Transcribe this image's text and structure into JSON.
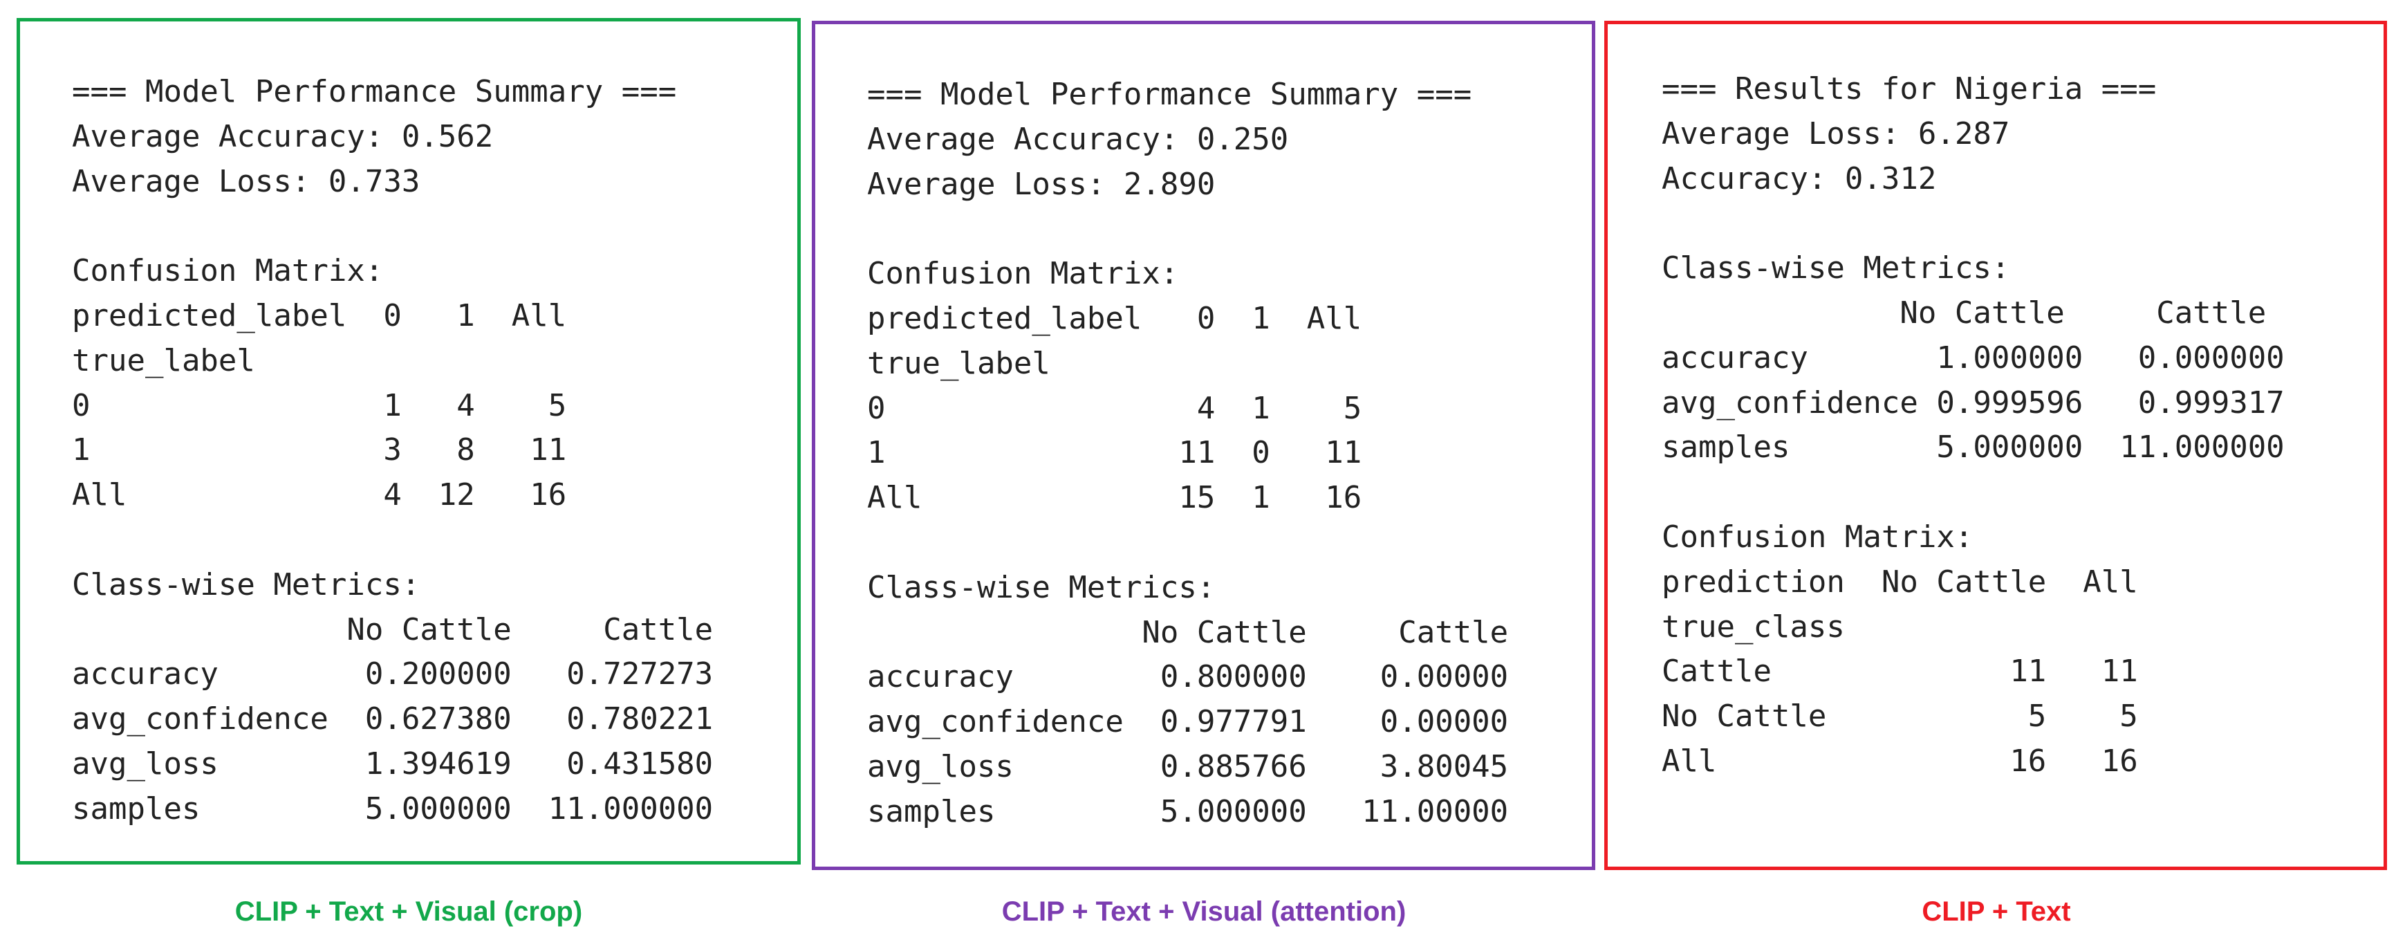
{
  "panels": [
    {
      "border_color": "#12a84a",
      "lines": [
        "=== Model Performance Summary ===",
        "Average Accuracy: 0.562",
        "Average Loss: 0.733",
        "",
        "Confusion Matrix:",
        "predicted_label  0   1  All",
        "true_label",
        "0                1   4    5",
        "1                3   8   11",
        "All              4  12   16",
        "",
        "Class-wise Metrics:",
        "               No Cattle     Cattle",
        "accuracy        0.200000   0.727273",
        "avg_confidence  0.627380   0.780221",
        "avg_loss        1.394619   0.431580",
        "samples         5.000000  11.000000"
      ],
      "caption": "CLIP + Text + Visual (crop)",
      "caption_color": "#12a84a"
    },
    {
      "border_color": "#7b3cb0",
      "lines": [
        "=== Model Performance Summary ===",
        "Average Accuracy: 0.250",
        "Average Loss: 2.890",
        "",
        "Confusion Matrix:",
        "predicted_label   0  1  All",
        "true_label",
        "0                 4  1    5",
        "1                11  0   11",
        "All              15  1   16",
        "",
        "Class-wise Metrics:",
        "               No Cattle     Cattle",
        "accuracy        0.800000    0.00000",
        "avg_confidence  0.977791    0.00000",
        "avg_loss        0.885766    3.80045",
        "samples         5.000000   11.00000"
      ],
      "caption": "CLIP + Text + Visual (attention)",
      "caption_color": "#7b3cb0"
    },
    {
      "border_color": "#ee1c24",
      "lines": [
        "=== Results for Nigeria ===",
        "Average Loss: 6.287",
        "Accuracy: 0.312",
        "",
        "Class-wise Metrics:",
        "             No Cattle     Cattle",
        "accuracy       1.000000   0.000000",
        "avg_confidence 0.999596   0.999317",
        "samples        5.000000  11.000000",
        "",
        "Confusion Matrix:",
        "prediction  No Cattle  All",
        "true_class",
        "Cattle             11   11",
        "No Cattle           5    5",
        "All                16   16"
      ],
      "caption": "CLIP + Text",
      "caption_color": "#ee1c24"
    }
  ]
}
